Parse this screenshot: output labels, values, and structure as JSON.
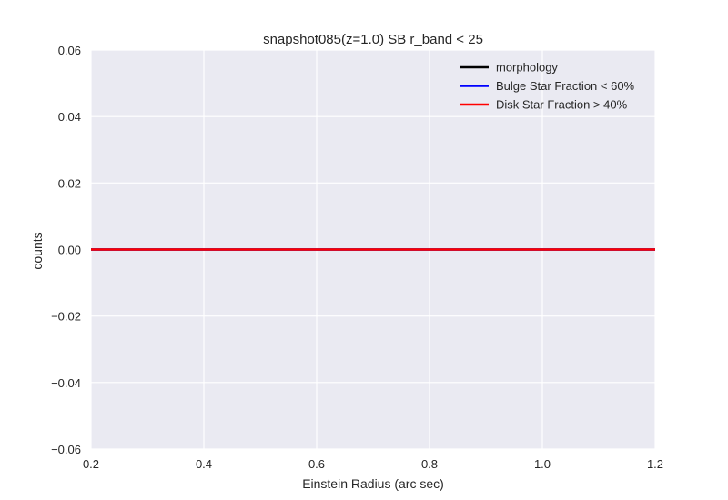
{
  "chart_data": {
    "type": "line",
    "title": "snapshot085(z=1.0) SB r_band < 25",
    "xlabel": "Einstein Radius (arc sec)",
    "ylabel": "counts",
    "xlim": [
      0.2,
      1.2
    ],
    "ylim": [
      -0.06,
      0.06
    ],
    "x_ticks": [
      0.2,
      0.4,
      0.6,
      0.8,
      1.0,
      1.2
    ],
    "x_tick_labels": [
      "0.2",
      "0.4",
      "0.6",
      "0.8",
      "1.0",
      "1.2"
    ],
    "y_ticks": [
      -0.06,
      -0.04,
      -0.02,
      0.0,
      0.02,
      0.04,
      0.06
    ],
    "y_tick_labels": [
      "−0.06",
      "−0.04",
      "−0.02",
      "0.00",
      "0.02",
      "0.04",
      "0.06"
    ],
    "grid": true,
    "background": "#eaeaf2",
    "grid_color": "#ffffff",
    "legend_position": "top-right",
    "series": [
      {
        "name": "morphology",
        "color": "#000000",
        "x": [
          0.2,
          1.2
        ],
        "y": [
          0,
          0
        ]
      },
      {
        "name": "Bulge Star Fraction < 60%",
        "color": "#0000ff",
        "x": [
          0.2,
          1.2
        ],
        "y": [
          0,
          0
        ]
      },
      {
        "name": "Disk Star Fraction > 40%",
        "color": "#ff0000",
        "x": [
          0.2,
          1.2
        ],
        "y": [
          0,
          0
        ]
      }
    ]
  }
}
